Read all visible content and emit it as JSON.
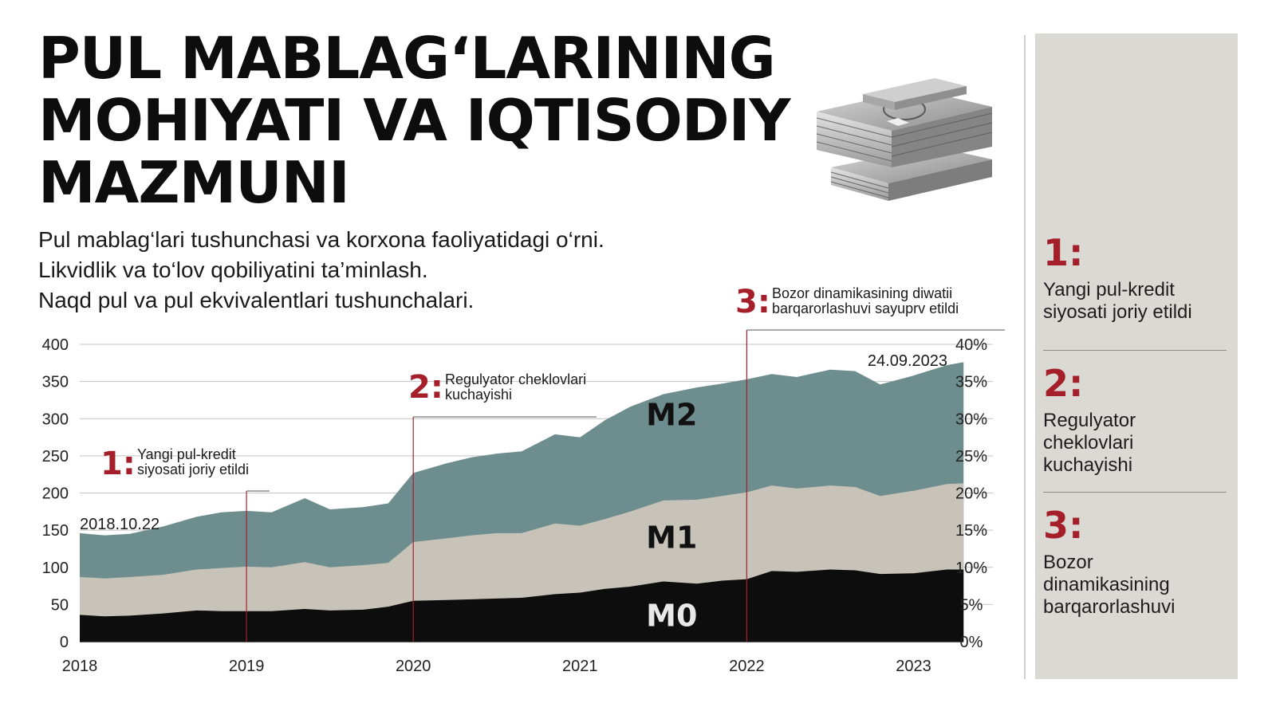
{
  "header": {
    "title_lines": [
      "PUL MABLAG‘LARINING",
      "MOHIYATI VA IQTISODIY",
      "MAZMUNI"
    ],
    "subtitle_lines": [
      "Pul mablag‘lari tushunchasi va korxona faoliyatidagi o‘rni.",
      "Likvidlik va to‘lov qobiliyatini ta’minlash.",
      "Naqd pul va pul ekvivalentlari tushunchalari."
    ],
    "image_icon": "money-stack-icon"
  },
  "colors": {
    "m2": "#6e8d8f",
    "m1": "#c7c3b8",
    "m0": "#0d0d0d",
    "accent": "#a51f2a",
    "sidebar_bg": "#dad9d3"
  },
  "chart_data": {
    "type": "area",
    "stacked": true,
    "x_tick_labels": [
      "2018",
      "2019",
      "2020",
      "2021",
      "2022",
      "2023"
    ],
    "x": [
      2018.0,
      2018.15,
      2018.3,
      2018.5,
      2018.7,
      2018.85,
      2019.0,
      2019.15,
      2019.35,
      2019.5,
      2019.7,
      2019.85,
      2020.0,
      2020.2,
      2020.35,
      2020.5,
      2020.65,
      2020.85,
      2021.0,
      2021.15,
      2021.3,
      2021.5,
      2021.7,
      2021.85,
      2022.0,
      2022.15,
      2022.3,
      2022.5,
      2022.65,
      2022.8,
      2023.0,
      2023.2,
      2023.3
    ],
    "series": [
      {
        "name": "M0",
        "values": [
          36,
          34,
          35,
          38,
          42,
          41,
          41,
          41,
          44,
          42,
          43,
          47,
          55,
          56,
          57,
          58,
          59,
          64,
          66,
          71,
          74,
          81,
          78,
          82,
          84,
          95,
          94,
          97,
          96,
          91,
          92,
          97,
          97
        ]
      },
      {
        "name": "M1",
        "values": [
          87,
          85,
          87,
          90,
          97,
          99,
          101,
          100,
          107,
          100,
          103,
          106,
          134,
          139,
          143,
          146,
          146,
          159,
          156,
          165,
          175,
          190,
          191,
          196,
          201,
          210,
          206,
          210,
          208,
          196,
          203,
          212,
          213
        ]
      },
      {
        "name": "M2",
        "values": [
          146,
          143,
          145,
          155,
          168,
          174,
          176,
          174,
          193,
          178,
          181,
          186,
          227,
          240,
          248,
          253,
          256,
          279,
          275,
          298,
          316,
          333,
          342,
          347,
          353,
          360,
          356,
          366,
          364,
          346,
          358,
          372,
          376
        ]
      }
    ],
    "y_left": {
      "min": 0,
      "max": 400,
      "ticks": [
        "0",
        "50",
        "100",
        "150",
        "200",
        "250",
        "300",
        "350",
        "400"
      ]
    },
    "y_right": {
      "min": 0,
      "max": 40,
      "ticks": [
        "0%",
        "5%",
        "10%",
        "15%",
        "20%",
        "25%",
        "30%",
        "35%",
        "40%"
      ]
    },
    "grid": "horizontal",
    "area_labels": [
      "M2",
      "M1",
      "M0"
    ],
    "annotations": [
      {
        "num": "1:",
        "lines": [
          "Yangi pul-kredit",
          "siyosati joriy etildi"
        ],
        "x": 2019.0
      },
      {
        "num": "2:",
        "lines": [
          "Regulyator cheklovlari",
          "kuchayishi"
        ],
        "x": 2020.0
      },
      {
        "num": "3:",
        "lines": [
          "Bozor dinamikasining diwatii",
          "barqarorlashuvi sayuprv etildi"
        ],
        "x": 2022.0
      }
    ],
    "date_labels": {
      "start": "2018.10.22",
      "end": "24.09.2023"
    }
  },
  "sidebar": {
    "items": [
      {
        "num": "1:",
        "text": [
          "Yangi pul-kredit",
          "siyosati joriy etildi"
        ]
      },
      {
        "num": "2:",
        "text": [
          "Regulyator",
          "cheklovlari",
          "kuchayishi"
        ]
      },
      {
        "num": "3:",
        "text": [
          "Bozor",
          "dinamikasining",
          "barqarorlashuvi"
        ]
      }
    ]
  }
}
